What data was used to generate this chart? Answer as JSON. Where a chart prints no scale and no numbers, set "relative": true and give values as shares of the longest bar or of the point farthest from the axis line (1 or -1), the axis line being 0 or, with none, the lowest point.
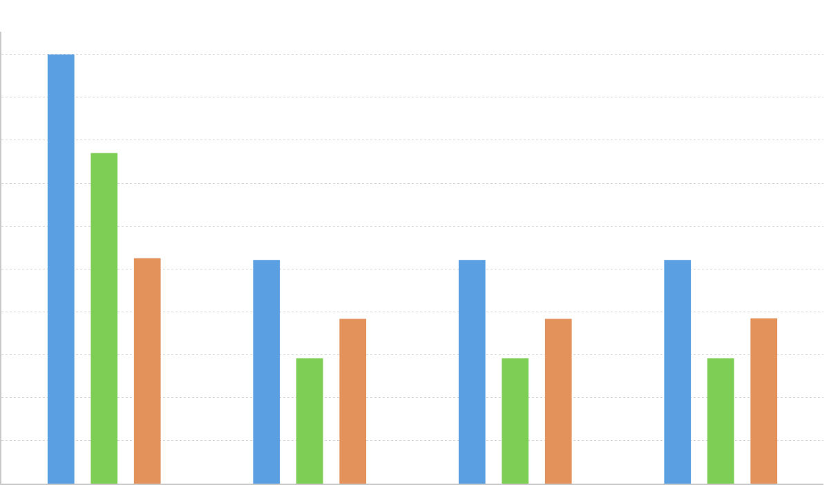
{
  "chart_data": {
    "type": "bar",
    "relative": true,
    "categories": [
      null,
      null,
      null,
      null
    ],
    "series": [
      {
        "color": "#5b9fe3",
        "values": [
          1,
          0.521,
          0.521,
          0.521
        ]
      },
      {
        "color": "#7ecd54",
        "values": [
          0.77,
          0.292,
          0.292,
          0.292
        ]
      },
      {
        "color": "#e3925c",
        "values": [
          0.525,
          0.384,
          0.384,
          0.385
        ]
      }
    ],
    "grid": "y"
  }
}
